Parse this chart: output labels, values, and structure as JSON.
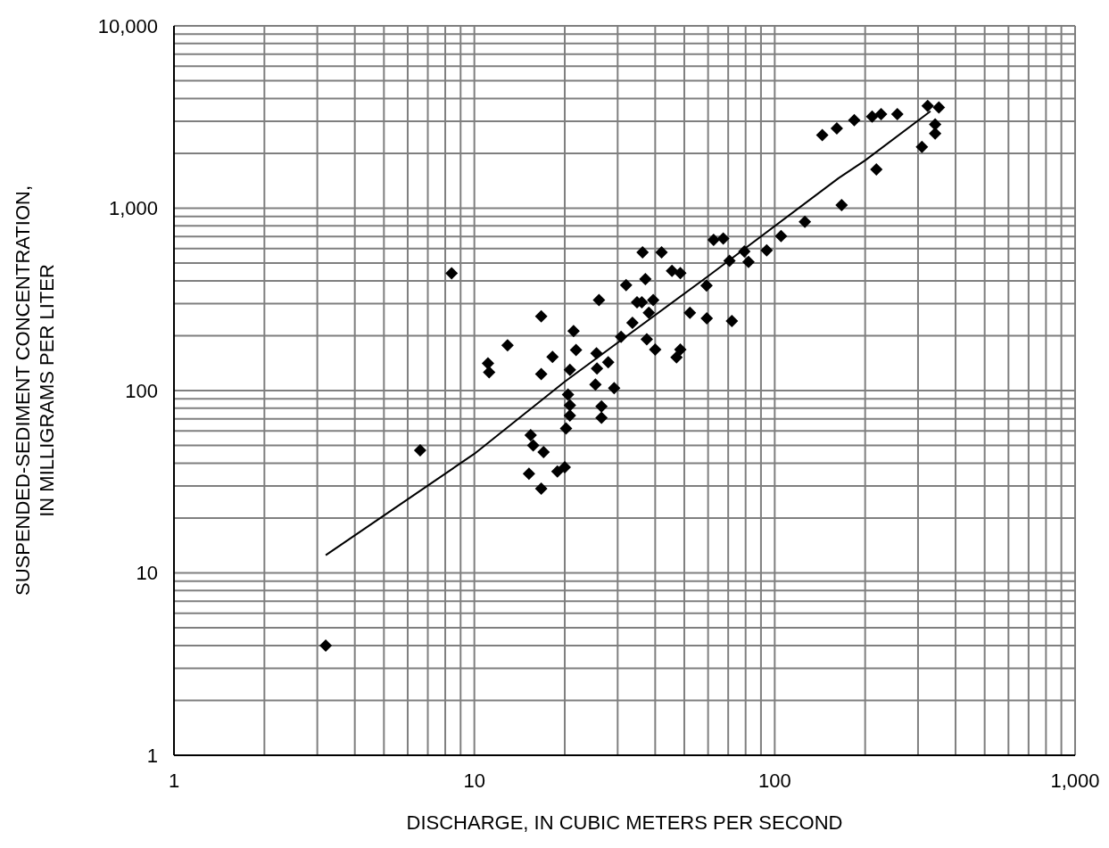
{
  "chart_data": {
    "type": "scatter",
    "xlabel": "DISCHARGE, IN CUBIC METERS PER SECOND",
    "ylabel": "SUSPENDED-SEDIMENT CONCENTRATION,\nIN MILLIGRAMS PER LITER",
    "log": "xy",
    "grid": true,
    "legend": false,
    "marker": "diamond",
    "xlim": [
      1,
      1000
    ],
    "ylim": [
      1,
      10000
    ],
    "xticks": [
      1,
      {
        "value": 2,
        "label": null
      },
      {
        "value": 3,
        "label": null
      },
      {
        "value": 4,
        "label": null
      },
      {
        "value": 5,
        "label": null
      },
      {
        "value": 6,
        "label": null
      },
      {
        "value": 7,
        "label": null
      },
      {
        "value": 8,
        "label": null
      },
      {
        "value": 9,
        "label": null
      },
      10,
      {
        "value": 20,
        "label": null
      },
      {
        "value": 30,
        "label": null
      },
      {
        "value": 40,
        "label": null
      },
      {
        "value": 50,
        "label": null
      },
      {
        "value": 60,
        "label": null
      },
      {
        "value": 70,
        "label": null
      },
      {
        "value": 80,
        "label": null
      },
      {
        "value": 90,
        "label": null
      },
      100,
      {
        "value": 200,
        "label": null
      },
      {
        "value": 300,
        "label": null
      },
      {
        "value": 400,
        "label": null
      },
      {
        "value": 500,
        "label": null
      },
      {
        "value": 600,
        "label": null
      },
      {
        "value": 700,
        "label": null
      },
      {
        "value": 800,
        "label": null
      },
      {
        "value": 900,
        "label": null
      },
      {
        "value": 1000,
        "label": "1,000"
      }
    ],
    "yticks": [
      1,
      {
        "value": 2,
        "label": null
      },
      {
        "value": 3,
        "label": null
      },
      {
        "value": 4,
        "label": null
      },
      {
        "value": 5,
        "label": null
      },
      {
        "value": 6,
        "label": null
      },
      {
        "value": 7,
        "label": null
      },
      {
        "value": 8,
        "label": null
      },
      {
        "value": 9,
        "label": null
      },
      10,
      {
        "value": 20,
        "label": null
      },
      {
        "value": 30,
        "label": null
      },
      {
        "value": 40,
        "label": null
      },
      {
        "value": 50,
        "label": null
      },
      {
        "value": 60,
        "label": null
      },
      {
        "value": 70,
        "label": null
      },
      {
        "value": 80,
        "label": null
      },
      {
        "value": 90,
        "label": null
      },
      100,
      {
        "value": 200,
        "label": null
      },
      {
        "value": 300,
        "label": null
      },
      {
        "value": 400,
        "label": null
      },
      {
        "value": 500,
        "label": null
      },
      {
        "value": 600,
        "label": null
      },
      {
        "value": 700,
        "label": null
      },
      {
        "value": 800,
        "label": null
      },
      {
        "value": 900,
        "label": null
      },
      {
        "value": 1000,
        "label": "1,000"
      },
      {
        "value": 2000,
        "label": null
      },
      {
        "value": 3000,
        "label": null
      },
      {
        "value": 4000,
        "label": null
      },
      {
        "value": 5000,
        "label": null
      },
      {
        "value": 6000,
        "label": null
      },
      {
        "value": 7000,
        "label": null
      },
      {
        "value": 8000,
        "label": null
      },
      {
        "value": 9000,
        "label": null
      },
      {
        "value": 10000,
        "label": "10,000"
      }
    ],
    "series": [
      {
        "color": "#000000",
        "x": [
          3.2,
          6.6,
          8.4,
          11.1,
          11.2,
          12.9,
          15.2,
          15.4,
          15.7,
          16.7,
          16.7,
          16.7,
          17.0,
          18.2,
          18.9,
          20.0,
          20.2,
          20.5,
          20.8,
          20.8,
          20.8,
          21.4,
          21.8,
          25.3,
          25.5,
          25.6,
          26.0,
          26.5,
          26.5,
          27.9,
          29.2,
          30.8,
          32.0,
          33.6,
          34.8,
          36.1,
          36.3,
          37.1,
          37.5,
          38.1,
          39.4,
          40.0,
          42.0,
          45.5,
          47.1,
          48.5,
          48.5,
          52.2,
          59.3,
          59.4,
          62.6,
          67.4,
          70.7,
          72.0,
          79.2,
          81.8,
          94,
          105,
          126,
          144,
          161,
          167,
          184,
          211,
          218,
          226,
          256,
          309,
          323,
          342,
          342,
          352
        ],
        "values": [
          4,
          47,
          440,
          141,
          126,
          177,
          35,
          57,
          50,
          255,
          123,
          29,
          46,
          153,
          36,
          38,
          62,
          95,
          130,
          83,
          73,
          212,
          167,
          108,
          160,
          132,
          314,
          82,
          71,
          143,
          103,
          197,
          379,
          235,
          305,
          305,
          573,
          408,
          191,
          267,
          314,
          168,
          573,
          454,
          152,
          441,
          168,
          267,
          376,
          249,
          670,
          682,
          515,
          241,
          579,
          508,
          587,
          703,
          843,
          2520,
          2740,
          1040,
          3040,
          3180,
          1630,
          3280,
          3280,
          2170,
          3640,
          2880,
          2570,
          3570
        ]
      },
      {
        "type": "line",
        "color": "#000000",
        "marker": "none",
        "line_style": "solid",
        "x": [
          3.2,
          10,
          20,
          60,
          163,
          200,
          330
        ],
        "values": [
          12.5,
          45,
          112,
          424,
          1460,
          1830,
          3400
        ]
      }
    ]
  }
}
